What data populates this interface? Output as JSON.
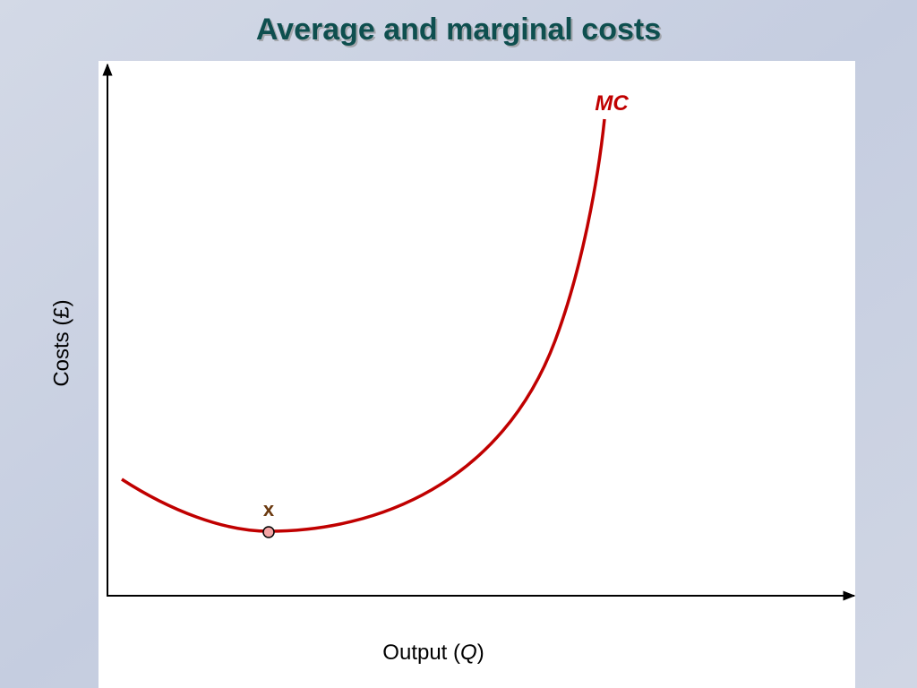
{
  "title": "Average and marginal costs",
  "y_axis": {
    "label": "Costs (£)"
  },
  "x_axis": {
    "label_parts": [
      "Output (",
      "Q",
      ")"
    ]
  },
  "curves": [
    {
      "label": "MC",
      "color": "#c00000"
    }
  ],
  "points": [
    {
      "label": "x"
    }
  ]
}
